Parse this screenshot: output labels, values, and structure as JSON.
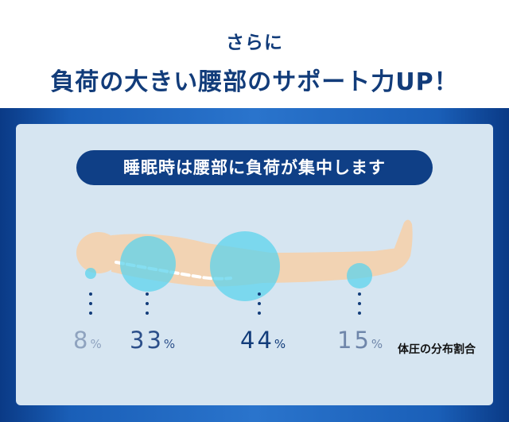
{
  "header": {
    "subtitle": "さらに",
    "title": "負荷の大きい腰部のサポート力UP！"
  },
  "banner": {
    "label": "睡眠時は腰部に負荷が集中します"
  },
  "distribution": {
    "items": [
      {
        "value": "8",
        "unit": "%",
        "color": "#8fa3bf"
      },
      {
        "value": "33",
        "unit": "%",
        "color": "#2c4f8a"
      },
      {
        "value": "44",
        "unit": "%",
        "color": "#123c7a"
      },
      {
        "value": "15",
        "unit": "%",
        "color": "#6f86aa"
      }
    ],
    "legend": "体圧の分布割合"
  },
  "colors": {
    "navy": "#123c7a",
    "panel": "#d6e5f1",
    "body": "#f2d3b3",
    "pressure": "#5cd3ec"
  }
}
